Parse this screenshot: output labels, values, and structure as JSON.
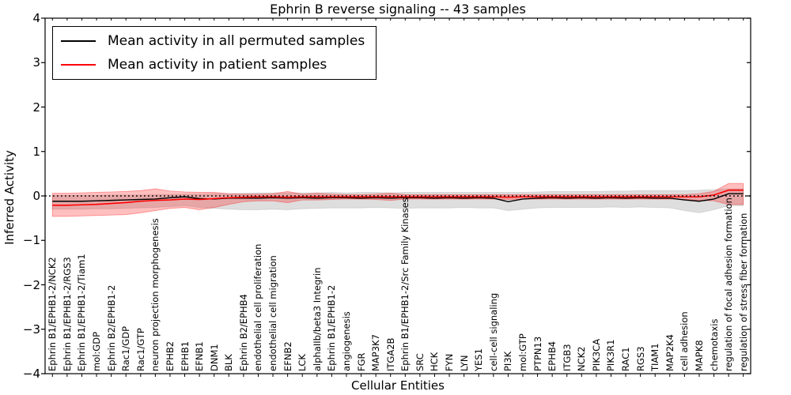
{
  "title": "Ephrin B reverse signaling -- 43 samples",
  "xlabel": "Cellular Entities",
  "ylabel": "Inferred Activity",
  "legend": {
    "items": [
      {
        "label": "Mean activity in all permuted samples",
        "color": "#000000"
      },
      {
        "label": "Mean activity in patient samples",
        "color": "#ff0000"
      }
    ]
  },
  "chart_data": {
    "type": "line",
    "title": "Ephrin B reverse signaling -- 43 samples",
    "xlabel": "Cellular Entities",
    "ylabel": "Inferred Activity",
    "ylim": [
      -4,
      4
    ],
    "yticks": [
      4,
      3,
      2,
      1,
      0,
      -1,
      -2,
      -3,
      -4
    ],
    "ytick_labels": [
      "4",
      "3",
      "2",
      "1",
      "0",
      "−1",
      "−2",
      "−3",
      "−4"
    ],
    "grid": false,
    "legend_position": "upper left",
    "categories": [
      "Ephrin B1/EPHB1-2/NCK2",
      "Ephrin B1/EPHB1-2/RGS3",
      "Ephrin B1/EPHB1-2/Tiam1",
      "mol:GDP",
      "Ephrin B2/EPHB1-2",
      "Rac1/GDP",
      "Rac1/GTP",
      "neuron projection morphogenesis",
      "EPHB2",
      "EPHB1",
      "EFNB1",
      "DNM1",
      "BLK",
      "Ephrin B2/EPHB4",
      "endothelial cell proliferation",
      "endothelial cell migration",
      "EFNB2",
      "LCK",
      "alphaIIb/beta3 Integrin",
      "Ephrin B1/EPHB1-2",
      "angiogenesis",
      "FGR",
      "MAP3K7",
      "ITGA2B",
      "Ephrin B1/EPHB1-2/Src Family Kinases",
      "SRC",
      "HCK",
      "FYN",
      "LYN",
      "YES1",
      "cell-cell signaling",
      "PI3K",
      "mol:GTP",
      "PTPN13",
      "EPHB4",
      "ITGB3",
      "NCK2",
      "PIK3CA",
      "PIK3R1",
      "RAC1",
      "RGS3",
      "TIAM1",
      "MAP2K4",
      "cell adhesion",
      "MAPK8",
      "chemotaxis",
      "regulation of focal adhesion formation",
      "regulation of stress fiber formation"
    ],
    "series": [
      {
        "name": "Mean activity in all permuted samples",
        "color": "#000000",
        "values": [
          -0.12,
          -0.12,
          -0.12,
          -0.11,
          -0.1,
          -0.09,
          -0.08,
          -0.07,
          -0.04,
          -0.02,
          -0.06,
          -0.07,
          -0.05,
          -0.05,
          -0.05,
          -0.04,
          -0.05,
          -0.04,
          -0.05,
          -0.04,
          -0.04,
          -0.05,
          -0.04,
          -0.05,
          -0.04,
          -0.04,
          -0.05,
          -0.04,
          -0.05,
          -0.04,
          -0.05,
          -0.13,
          -0.07,
          -0.05,
          -0.04,
          -0.05,
          -0.04,
          -0.05,
          -0.04,
          -0.05,
          -0.04,
          -0.05,
          -0.05,
          -0.09,
          -0.12,
          -0.07,
          0.05,
          0.05
        ]
      },
      {
        "name": "Mean activity in patient samples",
        "color": "#ff0000",
        "values": [
          -0.21,
          -0.21,
          -0.2,
          -0.19,
          -0.17,
          -0.15,
          -0.12,
          -0.1,
          -0.09,
          -0.07,
          -0.08,
          -0.06,
          -0.04,
          -0.03,
          -0.02,
          -0.02,
          -0.03,
          -0.02,
          -0.02,
          -0.02,
          -0.02,
          -0.02,
          -0.02,
          -0.02,
          -0.02,
          -0.02,
          -0.02,
          -0.02,
          -0.02,
          -0.02,
          -0.02,
          -0.03,
          -0.02,
          -0.02,
          -0.02,
          -0.02,
          -0.02,
          -0.02,
          -0.02,
          -0.02,
          -0.02,
          -0.02,
          -0.02,
          -0.02,
          -0.02,
          0.02,
          0.13,
          0.13
        ]
      }
    ],
    "bands": [
      {
        "name": "permuted-range",
        "color": "#000000",
        "opacity": 0.13,
        "edge_opacity": 0.1,
        "upper": [
          0.01,
          0.01,
          0.01,
          0.01,
          0.02,
          0.02,
          0.02,
          0.03,
          0.03,
          0.04,
          0.04,
          0.05,
          0.05,
          0.06,
          0.07,
          0.07,
          0.07,
          0.07,
          0.07,
          0.08,
          0.07,
          0.08,
          0.08,
          0.07,
          0.08,
          0.08,
          0.08,
          0.08,
          0.08,
          0.08,
          0.08,
          0.08,
          0.08,
          0.09,
          0.1,
          0.1,
          0.1,
          0.1,
          0.11,
          0.11,
          0.12,
          0.12,
          0.12,
          0.12,
          0.13,
          0.14,
          0.16,
          0.16
        ],
        "lower": [
          -0.3,
          -0.3,
          -0.3,
          -0.29,
          -0.29,
          -0.28,
          -0.27,
          -0.26,
          -0.24,
          -0.22,
          -0.26,
          -0.28,
          -0.3,
          -0.31,
          -0.31,
          -0.3,
          -0.31,
          -0.29,
          -0.28,
          -0.27,
          -0.27,
          -0.27,
          -0.26,
          -0.27,
          -0.28,
          -0.27,
          -0.27,
          -0.27,
          -0.26,
          -0.27,
          -0.27,
          -0.33,
          -0.3,
          -0.27,
          -0.26,
          -0.26,
          -0.26,
          -0.26,
          -0.25,
          -0.26,
          -0.25,
          -0.26,
          -0.27,
          -0.33,
          -0.38,
          -0.31,
          -0.22,
          -0.22
        ]
      },
      {
        "name": "patient-range",
        "color": "#ff0000",
        "opacity": 0.25,
        "edge_opacity": 0.35,
        "upper": [
          0.06,
          0.06,
          0.07,
          0.08,
          0.09,
          0.1,
          0.12,
          0.16,
          0.11,
          0.09,
          0.08,
          0.08,
          0.05,
          0.04,
          0.04,
          0.05,
          0.1,
          0.04,
          0.06,
          0.04,
          0.03,
          0.03,
          0.04,
          0.06,
          0.03,
          0.03,
          0.03,
          0.03,
          0.03,
          0.03,
          0.03,
          0.03,
          0.03,
          0.03,
          0.03,
          0.03,
          0.03,
          0.03,
          0.03,
          0.03,
          0.03,
          0.03,
          0.03,
          0.03,
          0.05,
          0.1,
          0.28,
          0.28
        ],
        "lower": [
          -0.46,
          -0.46,
          -0.45,
          -0.44,
          -0.43,
          -0.42,
          -0.38,
          -0.33,
          -0.28,
          -0.26,
          -0.31,
          -0.26,
          -0.19,
          -0.13,
          -0.11,
          -0.11,
          -0.15,
          -0.09,
          -0.09,
          -0.08,
          -0.07,
          -0.07,
          -0.08,
          -0.1,
          -0.07,
          -0.07,
          -0.07,
          -0.07,
          -0.07,
          -0.07,
          -0.07,
          -0.08,
          -0.07,
          -0.07,
          -0.07,
          -0.07,
          -0.07,
          -0.07,
          -0.07,
          -0.07,
          -0.07,
          -0.07,
          -0.07,
          -0.08,
          -0.1,
          -0.11,
          -0.19,
          -0.19
        ]
      }
    ],
    "baseline": {
      "value": 0,
      "style": "dotted",
      "color": "#000000"
    }
  }
}
